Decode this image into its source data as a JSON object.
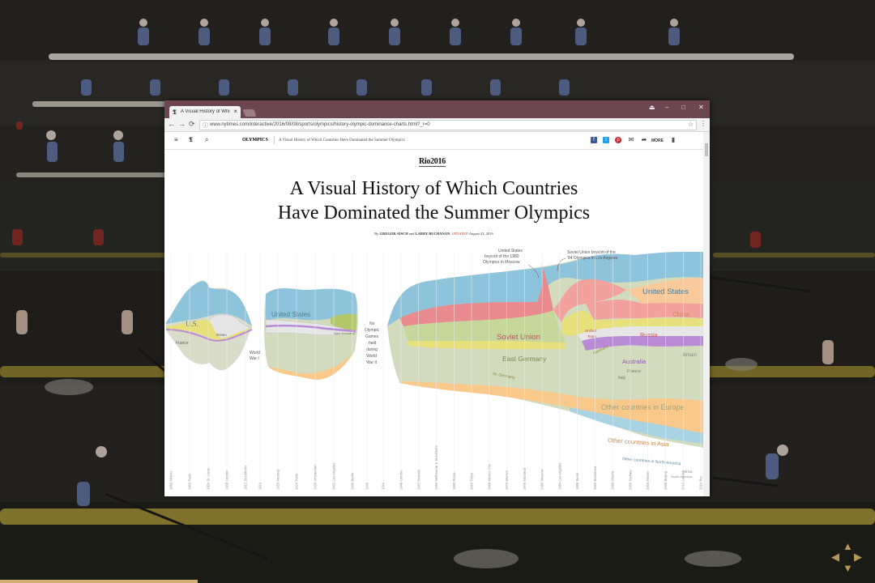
{
  "browser": {
    "tab_title": "A Visual History of Whi",
    "tab_favicon": "𝕿",
    "tab_close": "×",
    "url": "www.nytimes.com/interactive/2016/08/08/sports/olympics/history-olympic-dominance-charts.html?_r=0",
    "window_controls": {
      "account": "⏏",
      "minimize": "–",
      "maximize": "□",
      "close": "✕"
    },
    "nav": {
      "back": "←",
      "forward": "→",
      "reload": "⟳"
    },
    "url_info_icon": "ⓘ",
    "star": "☆",
    "menu": "⋮"
  },
  "nyt_bar": {
    "menu_icon": "≡",
    "logo_icon": "𝕿",
    "search_icon": "⌕",
    "section": "OLYMPICS",
    "article": "A Visual History of Which Countries Have Dominated the Summer Olympics",
    "share": {
      "facebook": "f",
      "twitter": "t",
      "pinterest": "p",
      "email": "✉",
      "more": "MORE",
      "more_icon": "➦",
      "save": "▮"
    }
  },
  "article": {
    "kicker": "Rio2016",
    "headline_line1": "A Visual History of Which Countries",
    "headline_line2": "Have Dominated the Summer Olympics",
    "byline_prefix": "By",
    "author1": "GREGOR AISCH",
    "byline_and": "and",
    "author2": "LARRY BUCHANAN",
    "updated_label": "UPDATED",
    "updated_date": "August 22, 2016"
  },
  "chart_data": {
    "type": "area",
    "annotations": {
      "boycott_1980": [
        "United States",
        "boycott of the 1980",
        "Olympics in Moscow"
      ],
      "boycott_1984": [
        "Soviet Union boycott of the",
        "'84 Olympics in Los Angeles"
      ],
      "no_games": [
        "No",
        "Olympic",
        "Games",
        "held",
        "during",
        "World",
        "War II"
      ],
      "ww1": [
        "World",
        "War I"
      ]
    },
    "series_labels": {
      "us_early": "U.S.",
      "france_early": "France",
      "britain_early": "Britain",
      "us_mid": "United States",
      "germany_mid": "Nazi Germany",
      "soviet": "Soviet Union",
      "east_germany": "East Germany",
      "w_germany": "W. Germany",
      "unified_team": [
        "Unified",
        "Team"
      ],
      "germany": "Germany",
      "united_states": "United States",
      "china": "China",
      "russia": "Russia",
      "britain": "Britain",
      "australia": "Australia",
      "france": "France",
      "italy": "Italy",
      "other_europe": "Other countries in Europe",
      "other_asia": "Other countries in Asia",
      "other_na": "Other countries in North America",
      "africa": "Africa",
      "south_america": "South America"
    },
    "years": [
      "1896 Athens",
      "1900 Paris",
      "1904 St. Louis",
      "1908 London",
      "1912 Stockholm",
      "1920 Antwerp",
      "1924 Paris",
      "1928 Amsterdam",
      "1932 Los Angeles",
      "1936 Berlin",
      "1948 London",
      "1952 Helsinki",
      "1956 Melbourne & Stockholm",
      "1960 Rome",
      "1964 Tokyo",
      "1968 Mexico City",
      "1972 Munich",
      "1976 Montreal",
      "1980 Moscow",
      "1984 Los Angeles",
      "1988 Seoul",
      "1992 Barcelona",
      "1996 Atlanta",
      "2000 Sydney",
      "2004 Athens",
      "2008 Beijing",
      "2012 London",
      "2016 Rio"
    ],
    "gap_years": [
      "1916",
      "1940",
      "1944"
    ],
    "colors": {
      "us": "#8ec3dc",
      "ussr": "#e98a8f",
      "east_germany": "#c6d79b",
      "germany": "#e8e07a",
      "china": "#f8c99b",
      "russia": "#f2a19c",
      "britain": "#d9d9d9",
      "australia": "#b98ad6",
      "france": "#e6e6e6",
      "europe": "#d3dbbf",
      "asia": "#f9c98c",
      "na": "#a9d3e3"
    }
  },
  "pager": {
    "up": "▲",
    "left": "◀",
    "right": "▶",
    "down": "▼"
  }
}
